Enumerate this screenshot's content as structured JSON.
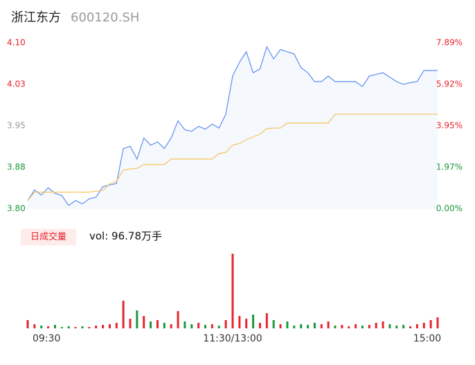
{
  "chart_data": [
    {
      "type": "line",
      "title": "浙江东方",
      "subtitle": "600120.SH",
      "x": [
        0,
        4,
        8,
        12,
        16,
        20,
        24,
        28,
        32,
        36,
        40,
        44,
        48,
        52,
        56,
        60,
        64,
        68,
        72,
        76,
        80,
        84,
        88,
        92,
        96,
        100,
        104,
        108,
        112,
        116,
        120,
        124,
        128,
        132,
        136,
        140,
        144,
        148,
        152,
        156,
        160,
        164,
        168,
        172,
        176,
        180,
        184,
        188,
        192,
        196,
        200,
        204,
        208,
        212,
        216,
        220,
        224,
        228,
        232,
        236,
        240
      ],
      "xlim": [
        0,
        240
      ],
      "series": [
        {
          "color": "#5b8def",
          "values": [
            3.815,
            3.834,
            3.825,
            3.838,
            3.828,
            3.824,
            3.806,
            3.815,
            3.809,
            3.818,
            3.821,
            3.84,
            3.843,
            3.846,
            3.909,
            3.913,
            3.89,
            3.928,
            3.915,
            3.921,
            3.909,
            3.928,
            3.959,
            3.943,
            3.94,
            3.949,
            3.944,
            3.953,
            3.946,
            3.971,
            4.04,
            4.065,
            4.084,
            4.046,
            4.053,
            4.093,
            4.071,
            4.088,
            4.084,
            4.08,
            4.055,
            4.046,
            4.03,
            4.03,
            4.04,
            4.03,
            4.03,
            4.03,
            4.03,
            4.021,
            4.04,
            4.043,
            4.046,
            4.038,
            4.03,
            4.025,
            4.028,
            4.03,
            4.05,
            4.05,
            4.05
          ]
        },
        {
          "color": "#f5c35a",
          "values": [
            3.815,
            3.83,
            3.83,
            3.83,
            3.83,
            3.83,
            3.83,
            3.83,
            3.83,
            3.83,
            3.832,
            3.833,
            3.845,
            3.85,
            3.87,
            3.872,
            3.873,
            3.88,
            3.88,
            3.88,
            3.88,
            3.89,
            3.89,
            3.89,
            3.89,
            3.89,
            3.89,
            3.89,
            3.9,
            3.902,
            3.915,
            3.918,
            3.925,
            3.93,
            3.935,
            3.945,
            3.946,
            3.946,
            3.955,
            3.955,
            3.955,
            3.955,
            3.955,
            3.955,
            3.955,
            3.971,
            3.971,
            3.971,
            3.971,
            3.971,
            3.971,
            3.971,
            3.971,
            3.971,
            3.971,
            3.971,
            3.971,
            3.971,
            3.971,
            3.971,
            3.971
          ]
        }
      ],
      "ylim": [
        3.8,
        4.1
      ],
      "yticks": [
        {
          "value": 3.8,
          "label": "3.80"
        },
        {
          "value": 3.875,
          "label": "3.88"
        },
        {
          "value": 3.95,
          "label": "3.95"
        },
        {
          "value": 4.025,
          "label": "4.03"
        },
        {
          "value": 4.1,
          "label": "4.10"
        }
      ],
      "y2lim": [
        0,
        7.89
      ],
      "y2ticks": [
        {
          "value": 0,
          "label": "0.00%"
        },
        {
          "value": 1.97,
          "label": "1.97%"
        },
        {
          "value": 3.95,
          "label": "3.95%"
        },
        {
          "value": 5.92,
          "label": "5.92%"
        },
        {
          "value": 7.89,
          "label": "7.89%"
        }
      ],
      "up_color": "#e8242e",
      "down_color": "#1a9a3a",
      "flat_color": "#999999"
    },
    {
      "type": "bar",
      "title": "日成交量",
      "annotation": "vol: 96.78万手",
      "x": [
        0,
        4,
        8,
        12,
        16,
        20,
        24,
        28,
        32,
        36,
        40,
        44,
        48,
        52,
        56,
        60,
        64,
        68,
        72,
        76,
        80,
        84,
        88,
        92,
        96,
        100,
        104,
        108,
        112,
        116,
        120,
        124,
        128,
        132,
        136,
        140,
        144,
        148,
        152,
        156,
        160,
        164,
        168,
        172,
        176,
        180,
        184,
        188,
        192,
        196,
        200,
        204,
        208,
        212,
        216,
        220,
        224,
        228,
        232,
        236,
        240
      ],
      "values": [
        12,
        6,
        4,
        3,
        5,
        2,
        3,
        2,
        3,
        2,
        4,
        5,
        6,
        8,
        40,
        14,
        26,
        18,
        10,
        12,
        8,
        6,
        25,
        10,
        6,
        8,
        5,
        6,
        4,
        12,
        108,
        18,
        14,
        20,
        8,
        22,
        12,
        6,
        10,
        4,
        6,
        5,
        8,
        6,
        10,
        4,
        5,
        3,
        6,
        4,
        5,
        8,
        10,
        6,
        4,
        5,
        3,
        6,
        8,
        12,
        16
      ],
      "xlim": [
        0,
        240
      ],
      "xticks": [
        {
          "value": 0,
          "label": "09:30"
        },
        {
          "value": 120,
          "label": "11:30/13:00"
        },
        {
          "value": 240,
          "label": "15:00"
        }
      ],
      "ylim": [
        0,
        110
      ]
    }
  ]
}
